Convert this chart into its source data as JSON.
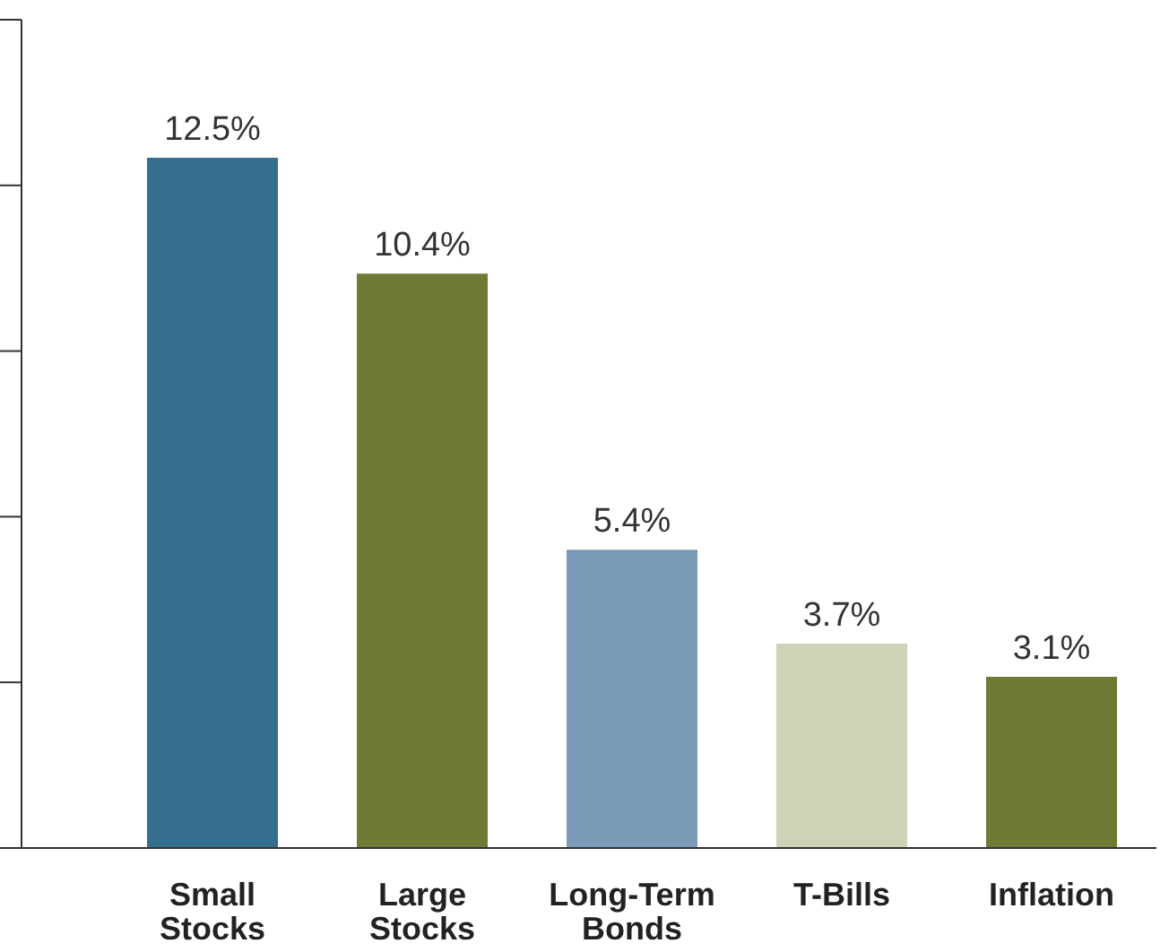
{
  "chart_data": {
    "type": "bar",
    "categories": [
      "Small Stocks",
      "Large Stocks",
      "Long-Term Bonds",
      "T-Bills",
      "Inflation"
    ],
    "values": [
      12.5,
      10.4,
      5.4,
      3.7,
      3.1
    ],
    "value_labels": [
      "12.5%",
      "10.4%",
      "5.4%",
      "3.7%",
      "3.1%"
    ],
    "colors": [
      "#356d8e",
      "#717a35",
      "#7b9cb8",
      "#cfd3b5",
      "#717a35"
    ],
    "ylim": [
      0,
      15
    ],
    "yticks": [
      {
        "value": 0,
        "label": null
      },
      {
        "value": 3,
        "label": null
      },
      {
        "value": 6,
        "label": null
      },
      {
        "value": 9,
        "label": null
      },
      {
        "value": 12,
        "label": null
      },
      {
        "value": 15,
        "label": null
      }
    ],
    "tick_labels": "x",
    "grid": false,
    "legend": false
  }
}
